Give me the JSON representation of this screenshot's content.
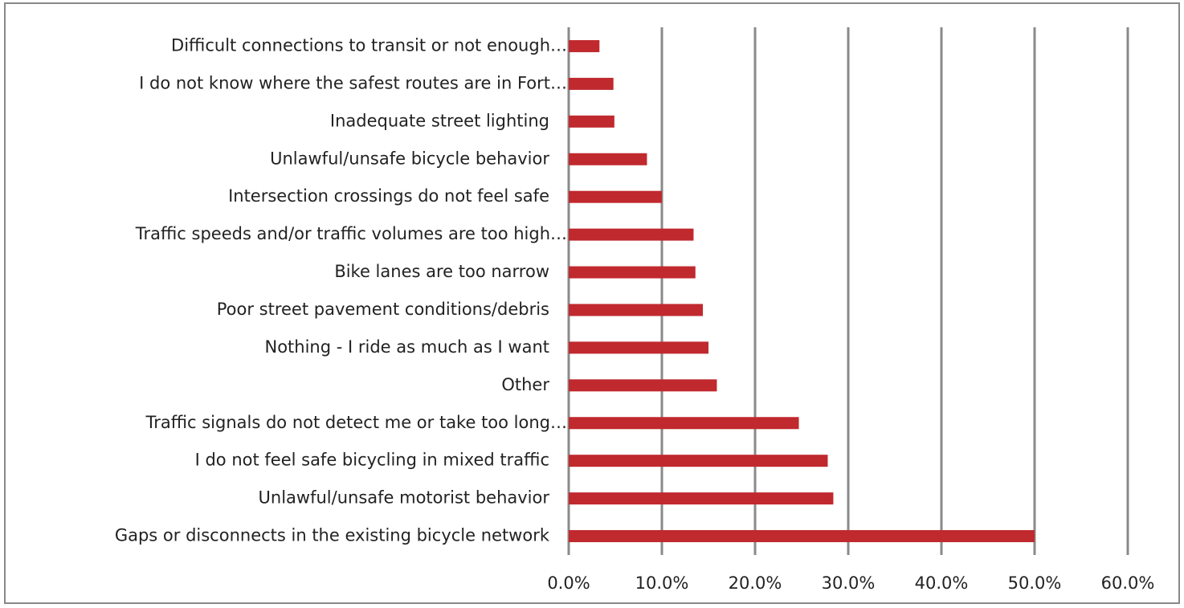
{
  "chart_data": {
    "type": "bar",
    "orientation": "horizontal",
    "categories": [
      "Difficult connections to transit or not enough…",
      "I do not know where the safest routes are in Fort…",
      "Inadequate street lighting",
      "Unlawful/unsafe bicycle behavior",
      "Intersection crossings do not feel safe",
      "Traffic speeds and/or traffic volumes are too high…",
      "Bike lanes are too narrow",
      "Poor street pavement conditions/debris",
      "Nothing - I ride as much as I want",
      "Other",
      "Traffic signals do not detect me or take too long…",
      "I do not feel safe bicycling in mixed traffic",
      "Unlawful/unsafe motorist behavior",
      "Gaps or disconnects in the existing bicycle network"
    ],
    "values": [
      3.3,
      4.8,
      4.9,
      8.4,
      10.0,
      13.4,
      13.6,
      14.4,
      15.0,
      15.9,
      24.7,
      27.8,
      28.4,
      50.0
    ],
    "color": "#c0292e",
    "xlim": [
      0,
      60
    ],
    "xticks": [
      {
        "value": 0,
        "label": "0.0%"
      },
      {
        "value": 10,
        "label": "10.0%"
      },
      {
        "value": 20,
        "label": "20.0%"
      },
      {
        "value": 30,
        "label": "30.0%"
      },
      {
        "value": 40,
        "label": "40.0%"
      },
      {
        "value": 50,
        "label": "50.0%"
      },
      {
        "value": 60,
        "label": "60.0%"
      }
    ],
    "grid": true
  }
}
